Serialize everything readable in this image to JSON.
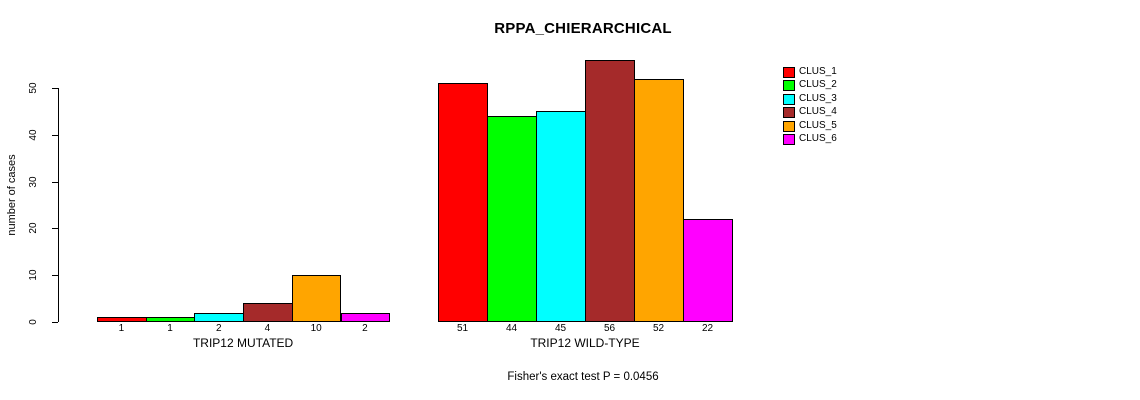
{
  "chart_data": {
    "type": "bar",
    "title": "RPPA_CHIERARCHICAL",
    "ylabel": "number of cases",
    "xlabel": "",
    "ylim": [
      0,
      50
    ],
    "yticks": [
      0,
      10,
      20,
      30,
      40,
      50
    ],
    "grid": false,
    "bar_value_labels_shown": true,
    "legend_position": "right",
    "legend": [
      {
        "label": "CLUS_1",
        "color": "#FF0000"
      },
      {
        "label": "CLUS_2",
        "color": "#00FF00"
      },
      {
        "label": "CLUS_3",
        "color": "#00FFFF"
      },
      {
        "label": "CLUS_4",
        "color": "#A52A2A"
      },
      {
        "label": "CLUS_5",
        "color": "#FFA500"
      },
      {
        "label": "CLUS_6",
        "color": "#FF00FF"
      }
    ],
    "groups": [
      {
        "label": "TRIP12 MUTATED",
        "values": [
          1,
          1,
          2,
          4,
          10,
          2
        ]
      },
      {
        "label": "TRIP12 WILD-TYPE",
        "values": [
          51,
          44,
          45,
          56,
          52,
          22
        ]
      }
    ],
    "footnote": "Fisher's exact test P = 0.0456"
  }
}
